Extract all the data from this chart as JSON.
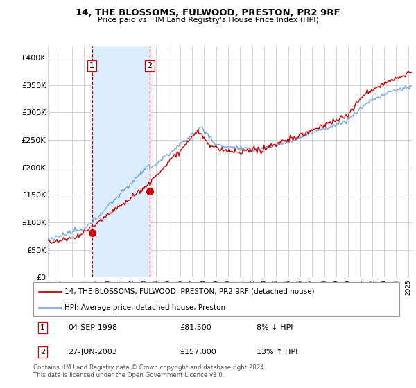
{
  "title": "14, THE BLOSSOMS, FULWOOD, PRESTON, PR2 9RF",
  "subtitle": "Price paid vs. HM Land Registry's House Price Index (HPI)",
  "ylabel_ticks": [
    "£0",
    "£50K",
    "£100K",
    "£150K",
    "£200K",
    "£250K",
    "£300K",
    "£350K",
    "£400K"
  ],
  "ytick_values": [
    0,
    50000,
    100000,
    150000,
    200000,
    250000,
    300000,
    350000,
    400000
  ],
  "ylim": [
    0,
    420000
  ],
  "xlim_start": 1995.0,
  "xlim_end": 2025.3,
  "sale1_x": 1998.67,
  "sale1_y": 81500,
  "sale1_label": "1",
  "sale2_x": 2003.49,
  "sale2_y": 157000,
  "sale2_label": "2",
  "sale1_date": "04-SEP-1998",
  "sale1_price": "£81,500",
  "sale1_hpi": "8% ↓ HPI",
  "sale2_date": "27-JUN-2003",
  "sale2_price": "£157,000",
  "sale2_hpi": "13% ↑ HPI",
  "vline1_x": 1998.67,
  "vline2_x": 2003.49,
  "legend_line1": "14, THE BLOSSOMS, FULWOOD, PRESTON, PR2 9RF (detached house)",
  "legend_line2": "HPI: Average price, detached house, Preston",
  "footer": "Contains HM Land Registry data © Crown copyright and database right 2024.\nThis data is licensed under the Open Government Licence v3.0.",
  "line_red": "#cc0000",
  "line_blue": "#7aaadd",
  "shade_color": "#ddeeff",
  "background_color": "#ffffff",
  "grid_color": "#cccccc"
}
